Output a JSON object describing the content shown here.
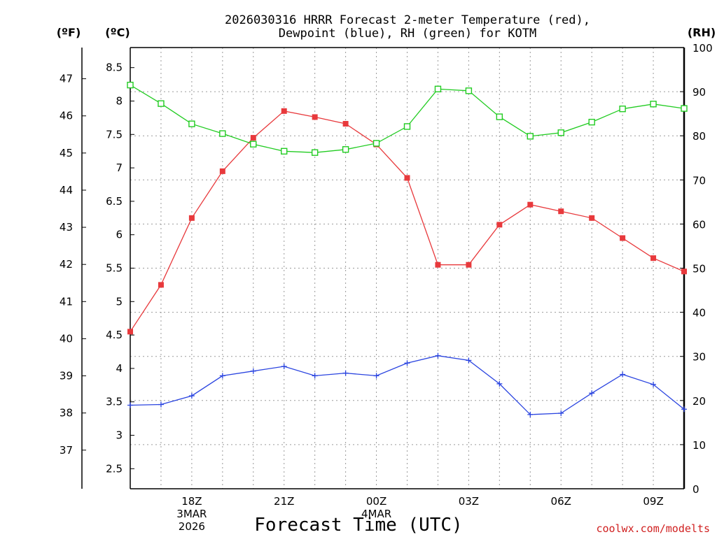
{
  "chart_data": {
    "type": "line",
    "title_lines": [
      "2026030316 HRRR Forecast 2-meter Temperature (red),",
      "Dewpoint (blue), RH (green) for KOTM"
    ],
    "units": {
      "fahrenheit": "(ºF)",
      "celsius": "(ºC)",
      "rh": "(RH)"
    },
    "xlabel": "Forecast Time (UTC)",
    "x_hours": [
      16,
      17,
      18,
      19,
      20,
      21,
      22,
      23,
      24,
      25,
      26,
      27,
      28,
      29,
      30,
      31,
      32,
      33,
      34
    ],
    "x_range": [
      16,
      34
    ],
    "x_ticks": [
      {
        "hour": 18,
        "lines": [
          "18Z",
          "3MAR",
          "2026"
        ]
      },
      {
        "hour": 21,
        "lines": [
          "21Z"
        ]
      },
      {
        "hour": 24,
        "lines": [
          "00Z",
          "4MAR"
        ]
      },
      {
        "hour": 27,
        "lines": [
          "03Z"
        ]
      },
      {
        "hour": 30,
        "lines": [
          "06Z"
        ]
      },
      {
        "hour": 33,
        "lines": [
          "09Z"
        ]
      }
    ],
    "y_left_c": {
      "range": [
        2.2,
        8.8
      ],
      "ticks": [
        "2.5",
        "3",
        "3.5",
        "4",
        "4.5",
        "5",
        "5.5",
        "6",
        "6.5",
        "7",
        "7.5",
        "8",
        "8.5"
      ]
    },
    "y_left_f": {
      "ticks": [
        "37",
        "38",
        "39",
        "40",
        "41",
        "42",
        "43",
        "44",
        "45",
        "46",
        "47"
      ]
    },
    "y_right_rh": {
      "range": [
        0,
        100
      ],
      "ticks": [
        "0",
        "10",
        "20",
        "30",
        "40",
        "50",
        "60",
        "70",
        "80",
        "90",
        "100"
      ]
    },
    "series": [
      {
        "name": "Temperature",
        "axis": "c",
        "color": "#e8393c",
        "marker": "filled-square",
        "values": [
          4.55,
          5.25,
          6.25,
          6.95,
          7.45,
          7.85,
          7.76,
          7.66,
          7.35,
          6.85,
          5.55,
          5.55,
          6.15,
          6.45,
          6.35,
          6.25,
          5.95,
          5.65,
          5.45
        ]
      },
      {
        "name": "Dewpoint",
        "axis": "c",
        "color": "#2a44e0",
        "marker": "plus",
        "values": [
          3.45,
          3.46,
          3.59,
          3.89,
          3.96,
          4.03,
          3.89,
          3.93,
          3.89,
          4.08,
          4.19,
          4.12,
          3.77,
          3.31,
          3.33,
          3.63,
          3.91,
          3.76,
          3.39
        ]
      },
      {
        "name": "RH",
        "axis": "rh",
        "color": "#22cc22",
        "marker": "open-square",
        "values": [
          91.5,
          87.3,
          82.7,
          80.5,
          78.1,
          76.5,
          76.2,
          76.9,
          78.3,
          82.1,
          90.6,
          90.2,
          84.3,
          79.9,
          80.7,
          83.1,
          86.1,
          87.2,
          86.2
        ]
      }
    ]
  },
  "credit": "coolwx.com/modelts"
}
